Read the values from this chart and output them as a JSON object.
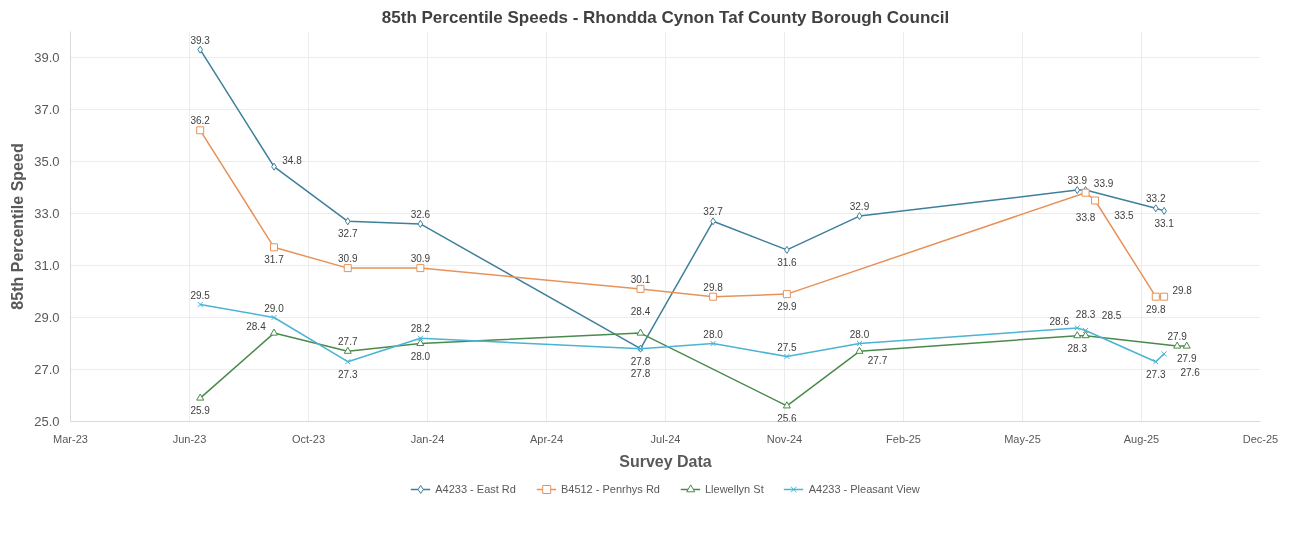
{
  "chart_data": {
    "type": "line",
    "title": "85th Percentile Speeds - Rhondda Cynon Taf County Borough Council",
    "xlabel": "Survey Data",
    "ylabel": "85th Percentile Speed",
    "xlim": [
      "2023-03-15",
      "2025-12-09"
    ],
    "xticks": [
      {
        "value": "2023-03-15",
        "label": "Mar-23"
      },
      {
        "value": "2023-06-23",
        "label": "Jun-23"
      },
      {
        "value": "2023-10-01",
        "label": "Oct-23"
      },
      {
        "value": "2024-01-09",
        "label": "Jan-24"
      },
      {
        "value": "2024-04-18",
        "label": "Apr-24"
      },
      {
        "value": "2024-07-27",
        "label": "Jul-24"
      },
      {
        "value": "2024-11-04",
        "label": "Nov-24"
      },
      {
        "value": "2025-02-12",
        "label": "Feb-25"
      },
      {
        "value": "2025-05-23",
        "label": "May-25"
      },
      {
        "value": "2025-08-31",
        "label": "Aug-25"
      },
      {
        "value": "2025-12-09",
        "label": "Dec-25"
      }
    ],
    "ylim": [
      25,
      40
    ],
    "yticks": [
      {
        "value": 25,
        "label": "25.0"
      },
      {
        "value": 27,
        "label": "27.0"
      },
      {
        "value": 29,
        "label": "29.0"
      },
      {
        "value": 31,
        "label": "31.0"
      },
      {
        "value": 33,
        "label": "33.0"
      },
      {
        "value": 35,
        "label": "35.0"
      },
      {
        "value": 37,
        "label": "37.0"
      },
      {
        "value": 39,
        "label": "39.0"
      }
    ],
    "grid": true,
    "legend": "bottom",
    "line_style": "solid",
    "series": [
      {
        "name": "A4233 - East Rd",
        "color": "#3f7f9b",
        "marker": "diamond",
        "x": [
          "2023-07-02",
          "2023-09-02",
          "2023-11-03",
          "2024-01-03",
          "2024-07-06",
          "2024-09-05",
          "2024-11-06",
          "2025-01-06",
          "2025-07-08",
          "2025-07-15",
          "2025-09-12",
          "2025-09-19"
        ],
        "values": [
          39.3,
          34.8,
          32.7,
          32.6,
          27.8,
          32.7,
          31.6,
          32.9,
          33.9,
          33.9,
          33.2,
          33.1
        ],
        "value_labels": [
          "39.3",
          "34.8",
          "32.7",
          "32.6",
          "27.8",
          "32.7",
          "31.6",
          "32.9",
          "33.9",
          "33.9",
          "33.2",
          "33.1"
        ]
      },
      {
        "name": "B4512 - Penrhys Rd",
        "color": "#e8925a",
        "marker": "square",
        "x": [
          "2023-07-02",
          "2023-09-02",
          "2023-11-03",
          "2024-01-03",
          "2024-07-06",
          "2024-09-05",
          "2024-11-06",
          "2025-07-15",
          "2025-07-23",
          "2025-09-12",
          "2025-09-19"
        ],
        "values": [
          36.2,
          31.7,
          30.9,
          30.9,
          30.1,
          29.8,
          29.9,
          33.8,
          33.5,
          29.8,
          29.8
        ],
        "value_labels": [
          "36.2",
          "31.7",
          "30.9",
          "30.9",
          "30.1",
          "29.8",
          "29.9",
          "33.8",
          "33.5",
          "29.8",
          "29.8"
        ]
      },
      {
        "name": "Llewellyn St",
        "color": "#4a8a4a",
        "marker": "triangle",
        "x": [
          "2023-07-02",
          "2023-09-02",
          "2023-11-03",
          "2024-01-03",
          "2024-07-06",
          "2024-11-06",
          "2025-01-06",
          "2025-07-08",
          "2025-07-15",
          "2025-09-30",
          "2025-10-08"
        ],
        "values": [
          25.9,
          28.4,
          27.7,
          28.0,
          28.4,
          25.6,
          27.7,
          28.3,
          28.3,
          27.9,
          27.9
        ],
        "value_labels": [
          "25.9",
          "28.4",
          "27.7",
          "28.0",
          "28.4",
          "25.6",
          "27.7",
          "28.3",
          "28.3",
          "27.9",
          "27.9"
        ]
      },
      {
        "name": "A4233 - Pleasant View",
        "color": "#4bb3d4",
        "marker": "cross",
        "x": [
          "2023-07-02",
          "2023-09-02",
          "2023-11-03",
          "2024-01-03",
          "2024-07-06",
          "2024-09-05",
          "2024-11-06",
          "2025-01-06",
          "2025-07-08",
          "2025-07-15",
          "2025-09-12",
          "2025-09-19"
        ],
        "values": [
          29.5,
          29.0,
          27.3,
          28.2,
          27.8,
          28.0,
          27.5,
          28.0,
          28.6,
          28.5,
          27.3,
          27.6
        ],
        "value_labels": [
          "29.5",
          "29.0",
          "27.3",
          "28.2",
          "27.8",
          "28.0",
          "27.5",
          "28.0",
          "28.6",
          "28.5",
          "27.3",
          "27.6"
        ]
      }
    ]
  }
}
